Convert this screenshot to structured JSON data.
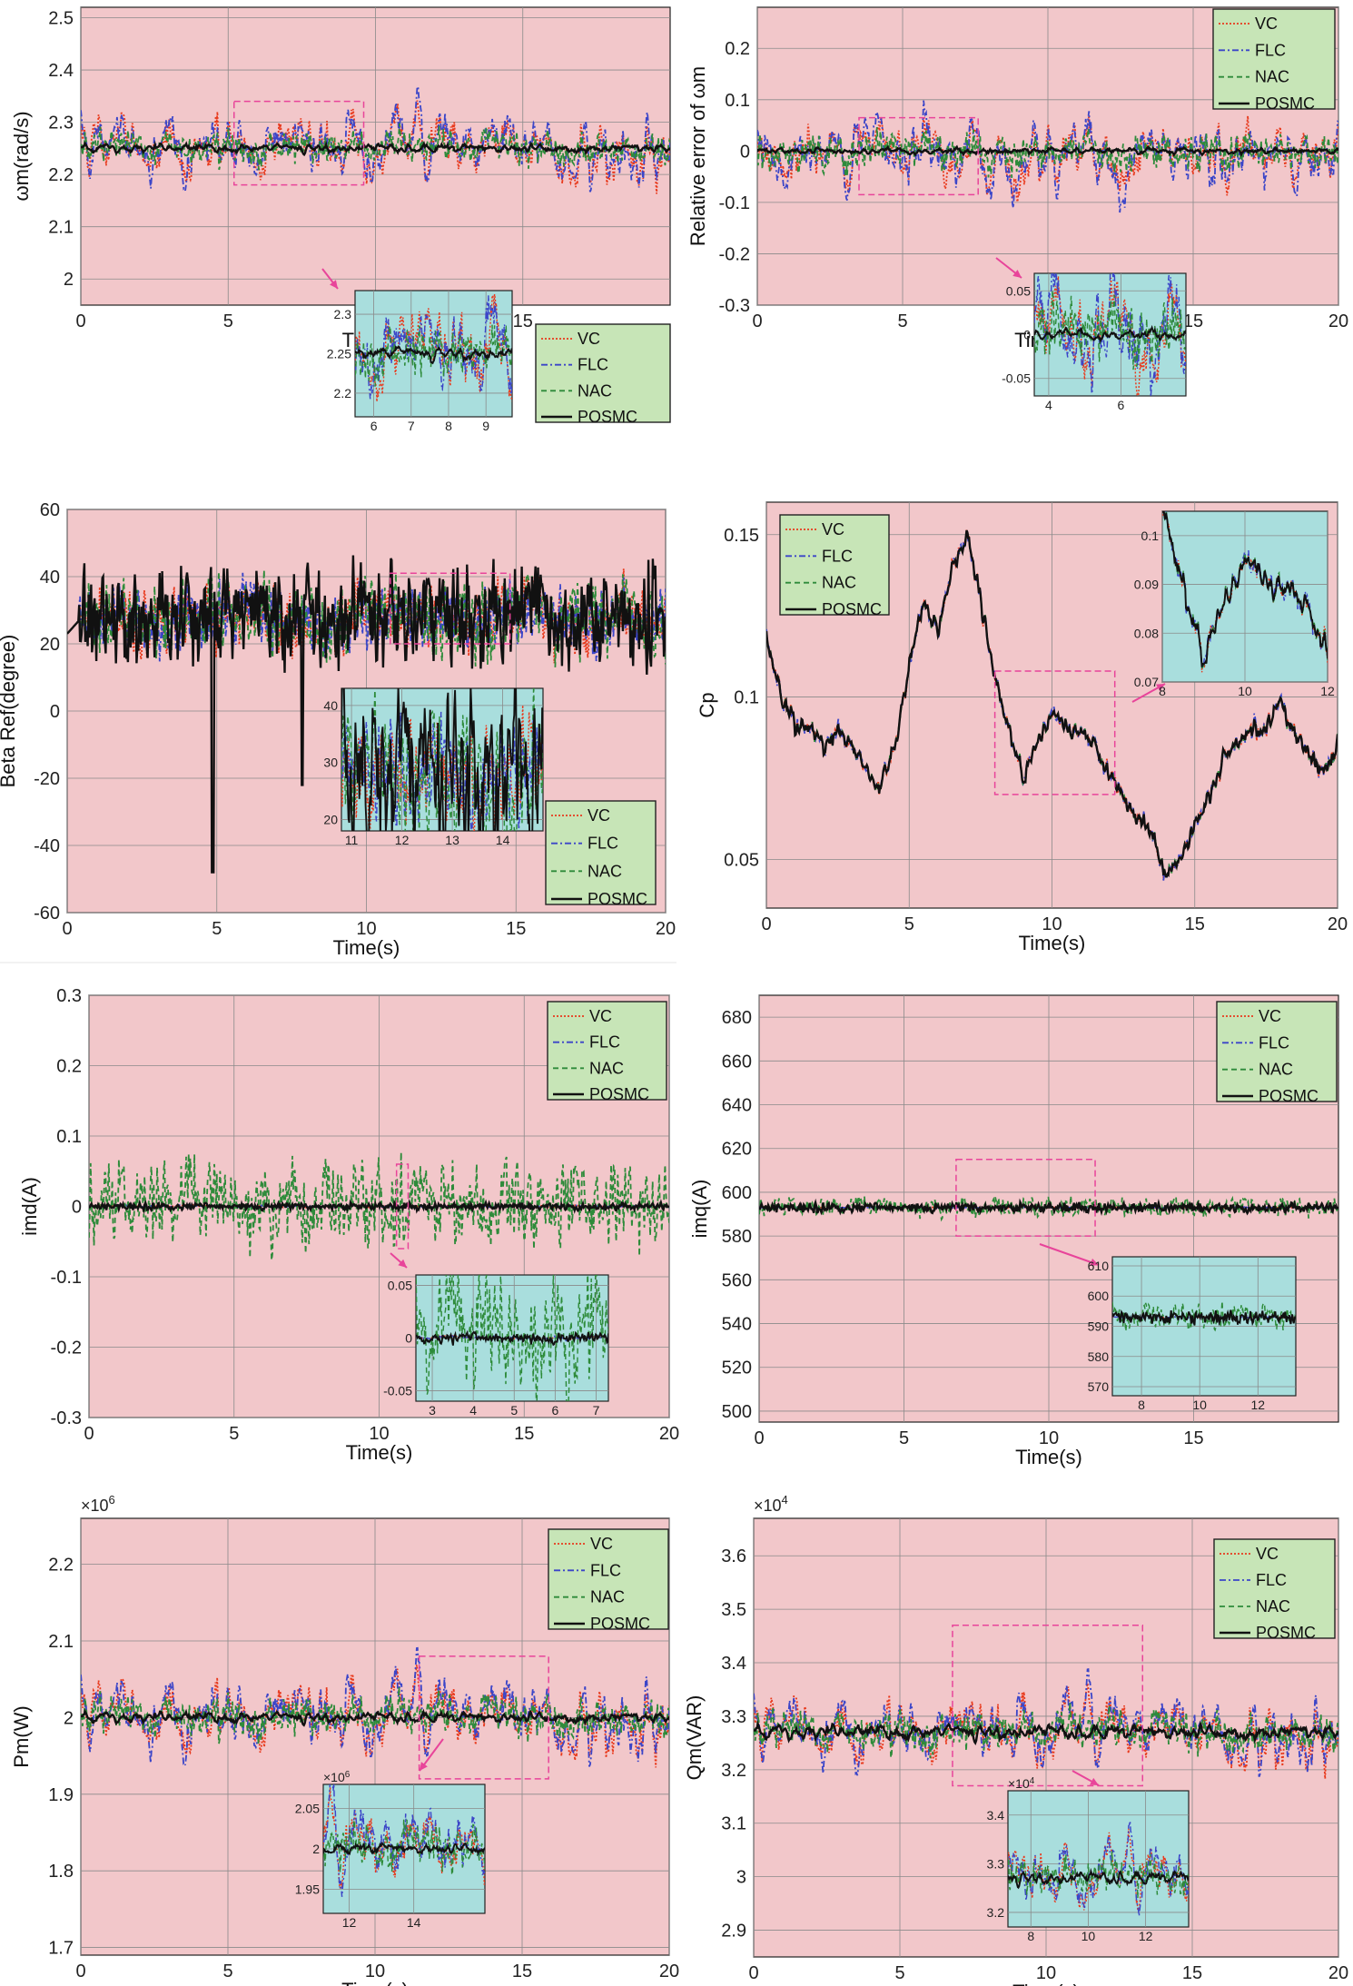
{
  "colors": {
    "VC": "#e8391c",
    "FLC": "#3b45c8",
    "NAC": "#2e8b3a",
    "POSMC": "#111111",
    "plot_bg": "#f2c7ca",
    "inset_bg": "#a9dedd",
    "legend_bg": "#c7e5b7",
    "zoom_box": "#e8449a"
  },
  "chart_data": [
    {
      "id": "wm",
      "type": "line",
      "title": "",
      "xlabel": "Time(s)",
      "ylabel": "ωm(rad/s)",
      "xlim": [
        0,
        20
      ],
      "ylim": [
        1.95,
        2.52
      ],
      "xticks": [
        0,
        5,
        10,
        15
      ],
      "xtick_labels": [
        "0",
        "5",
        "10",
        "15"
      ],
      "yticks": [
        2,
        2.1,
        2.2,
        2.3,
        2.4,
        2.5
      ],
      "ytick_labels": [
        "2",
        "2.1",
        "2.2",
        "2.3",
        "2.4",
        "2.5"
      ],
      "legend": [
        "VC",
        "FLC",
        "NAC",
        "POSMC"
      ],
      "legend_position": "lower-right",
      "series_params": {
        "base": 2.25,
        "VC": 0.12,
        "FLC": 0.13,
        "NAC": 0.06,
        "POSMC": 0.012
      },
      "zoom_box": {
        "x": [
          5.2,
          9.6
        ],
        "y": [
          2.18,
          2.34
        ]
      },
      "inset": {
        "xlim": [
          5.5,
          9.7
        ],
        "ylim": [
          2.17,
          2.33
        ],
        "xticks": [
          6,
          7,
          8,
          9
        ],
        "xtick_labels": [
          "6",
          "7",
          "8",
          "9"
        ],
        "yticks": [
          2.2,
          2.25,
          2.3
        ],
        "ytick_labels": [
          "2.2",
          "2.25",
          "2.3"
        ]
      }
    },
    {
      "id": "rel_err",
      "type": "line",
      "title": "",
      "xlabel": "Time(s)",
      "ylabel": "Relative error of ωm",
      "xlim": [
        0,
        20
      ],
      "ylim": [
        -0.3,
        0.28
      ],
      "xticks": [
        0,
        5,
        10,
        15,
        20
      ],
      "xtick_labels": [
        "0",
        "5",
        "10",
        "15",
        "20"
      ],
      "yticks": [
        -0.3,
        -0.2,
        -0.1,
        0,
        0.1,
        0.2
      ],
      "ytick_labels": [
        "-0.3",
        "-0.2",
        "-0.1",
        "0",
        "0.1",
        "0.2"
      ],
      "legend": [
        "VC",
        "FLC",
        "NAC",
        "POSMC"
      ],
      "legend_position": "top-right",
      "series_params": {
        "base": 0,
        "VC": 0.11,
        "FLC": 0.12,
        "NAC": 0.06,
        "POSMC": 0.008
      },
      "zoom_box": {
        "x": [
          3.5,
          7.6
        ],
        "y": [
          -0.085,
          0.065
        ]
      },
      "inset": {
        "xlim": [
          3.6,
          7.8
        ],
        "ylim": [
          -0.07,
          0.07
        ],
        "xticks": [
          4,
          6
        ],
        "xtick_labels": [
          "4",
          "6"
        ],
        "yticks": [
          -0.05,
          0,
          0.05
        ],
        "ytick_labels": [
          "-0.05",
          "0",
          "0.05"
        ]
      }
    },
    {
      "id": "beta",
      "type": "line",
      "title": "",
      "xlabel": "Time(s)",
      "ylabel": "Beta Ref(degree)",
      "xlim": [
        0,
        20
      ],
      "ylim": [
        -60,
        60
      ],
      "xticks": [
        0,
        5,
        10,
        15,
        20
      ],
      "xtick_labels": [
        "0",
        "5",
        "10",
        "15",
        "20"
      ],
      "yticks": [
        -60,
        -40,
        -20,
        0,
        20,
        40,
        60
      ],
      "ytick_labels": [
        "-60",
        "-40",
        "-20",
        "0",
        "20",
        "40",
        "60"
      ],
      "legend": [
        "VC",
        "FLC",
        "NAC",
        "POSMC"
      ],
      "legend_position": "lower-right",
      "series_params": {
        "base": 28,
        "VC": 5,
        "FLC": 5,
        "NAC": 6,
        "POSMC": 8
      },
      "zoom_box": {
        "x": [
          10.8,
          14.8
        ],
        "y": [
          20,
          41
        ]
      },
      "inset": {
        "xlim": [
          10.8,
          14.8
        ],
        "ylim": [
          18,
          43
        ],
        "xticks": [
          11,
          12,
          13,
          14
        ],
        "xtick_labels": [
          "11",
          "12",
          "13",
          "14"
        ],
        "yticks": [
          20,
          30,
          40
        ],
        "ytick_labels": [
          "20",
          "30",
          "40"
        ]
      }
    },
    {
      "id": "cp",
      "type": "line",
      "title": "",
      "xlabel": "Time(s)",
      "ylabel": "Cp",
      "xlim": [
        0,
        20
      ],
      "ylim": [
        0.035,
        0.16
      ],
      "xticks": [
        0,
        5,
        10,
        15,
        20
      ],
      "xtick_labels": [
        "0",
        "5",
        "10",
        "15",
        "20"
      ],
      "yticks": [
        0.05,
        0.1,
        0.15
      ],
      "ytick_labels": [
        "0.05",
        "0.1",
        "0.15"
      ],
      "legend": [
        "VC",
        "FLC",
        "NAC",
        "POSMC"
      ],
      "legend_position": "top-left",
      "series_params": {
        "base": 0.09,
        "VC": 0.0015,
        "FLC": 0.0018,
        "NAC": 0.0012,
        "POSMC": 0
      },
      "zoom_box": {
        "x": [
          8,
          12.2
        ],
        "y": [
          0.07,
          0.108
        ]
      },
      "inset": {
        "xlim": [
          8,
          12
        ],
        "ylim": [
          0.07,
          0.105
        ],
        "xticks": [
          8,
          10,
          12
        ],
        "xtick_labels": [
          "8",
          "10",
          "12"
        ],
        "yticks": [
          0.07,
          0.08,
          0.09,
          0.1
        ],
        "ytick_labels": [
          "0.07",
          "0.08",
          "0.09",
          "0.1"
        ]
      }
    },
    {
      "id": "imd",
      "type": "line",
      "title": "",
      "xlabel": "Time(s)",
      "ylabel": "imd(A)",
      "xlim": [
        0,
        20
      ],
      "ylim": [
        -0.3,
        0.3
      ],
      "xticks": [
        0,
        5,
        10,
        15,
        20
      ],
      "xtick_labels": [
        "0",
        "5",
        "10",
        "15",
        "20"
      ],
      "yticks": [
        -0.3,
        -0.2,
        -0.1,
        0,
        0.1,
        0.2,
        0.3
      ],
      "ytick_labels": [
        "-0.3",
        "-0.2",
        "-0.1",
        "0",
        "0.1",
        "0.2",
        "0.3"
      ],
      "legend": [
        "VC",
        "FLC",
        "NAC",
        "POSMC"
      ],
      "legend_position": "top-right",
      "series_params": {
        "base": 0,
        "VC": 0.003,
        "FLC": 0.003,
        "NAC": 0.1,
        "POSMC": 0.007
      },
      "zoom_box": {
        "x": [
          10.6,
          11.0
        ],
        "y": [
          -0.06,
          0.06
        ]
      },
      "inset": {
        "xlim": [
          2.6,
          7.3
        ],
        "ylim": [
          -0.06,
          0.06
        ],
        "xticks": [
          3,
          4,
          5,
          6,
          7
        ],
        "xtick_labels": [
          "3",
          "4",
          "5",
          "6",
          "7"
        ],
        "yticks": [
          -0.05,
          0,
          0.05
        ],
        "ytick_labels": [
          "-0.05",
          "0",
          "0.05"
        ]
      }
    },
    {
      "id": "imq",
      "type": "line",
      "title": "",
      "xlabel": "Time(s)",
      "ylabel": "imq(A)",
      "xlim": [
        0,
        20
      ],
      "ylim": [
        495,
        690
      ],
      "xticks": [
        0,
        5,
        10,
        15
      ],
      "xtick_labels": [
        "0",
        "5",
        "10",
        "15"
      ],
      "yticks": [
        500,
        520,
        540,
        560,
        580,
        600,
        620,
        640,
        660,
        680
      ],
      "ytick_labels": [
        "500",
        "520",
        "540",
        "560",
        "580",
        "600",
        "620",
        "640",
        "660",
        "680"
      ],
      "legend": [
        "VC",
        "FLC",
        "NAC",
        "POSMC"
      ],
      "legend_position": "top-right",
      "series_params": {
        "base": 593,
        "VC": 0.3,
        "FLC": 0.3,
        "NAC": 7,
        "POSMC": 3
      },
      "zoom_box": {
        "x": [
          6.8,
          11.6
        ],
        "y": [
          580,
          615
        ]
      },
      "inset": {
        "xlim": [
          7,
          13.3
        ],
        "ylim": [
          567,
          613
        ],
        "xticks": [
          8,
          10,
          12
        ],
        "xtick_labels": [
          "8",
          "10",
          "12"
        ],
        "yticks": [
          570,
          580,
          590,
          600,
          610
        ],
        "ytick_labels": [
          "570",
          "580",
          "590",
          "600",
          "610"
        ]
      }
    },
    {
      "id": "pm",
      "type": "line",
      "title": "",
      "xlabel": "Time(s)",
      "ylabel": "Pm(W)",
      "multiplier": "×10^6",
      "xlim": [
        0,
        20
      ],
      "ylim": [
        1.69,
        2.26
      ],
      "xticks": [
        0,
        5,
        10,
        15,
        20
      ],
      "xtick_labels": [
        "0",
        "5",
        "10",
        "15",
        "20"
      ],
      "yticks": [
        1.7,
        1.8,
        1.9,
        2,
        2.1,
        2.2
      ],
      "ytick_labels": [
        "1.7",
        "1.8",
        "1.9",
        "2",
        "2.1",
        "2.2"
      ],
      "legend": [
        "VC",
        "FLC",
        "NAC",
        "POSMC"
      ],
      "legend_position": "top-right",
      "series_params": {
        "base": 2.0,
        "VC": 0.09,
        "FLC": 0.1,
        "NAC": 0.05,
        "POSMC": 0.01
      },
      "zoom_box": {
        "x": [
          11.5,
          15.9
        ],
        "y": [
          1.92,
          2.08
        ]
      },
      "inset": {
        "xlim": [
          11.2,
          16.2
        ],
        "ylim": [
          1.92,
          2.08
        ],
        "xticks": [
          12,
          14
        ],
        "xtick_labels": [
          "12",
          "14"
        ],
        "yticks": [
          1.95,
          2,
          2.05
        ],
        "ytick_labels": [
          "1.95",
          "2",
          "2.05"
        ],
        "multiplier": "×10^6"
      }
    },
    {
      "id": "qm",
      "type": "line",
      "title": "",
      "xlabel": "Time(s)",
      "ylabel": "Qm(VAR)",
      "multiplier": "×10^4",
      "xlim": [
        0,
        20
      ],
      "ylim": [
        2.85,
        3.67
      ],
      "xticks": [
        0,
        5,
        10,
        15,
        20
      ],
      "xtick_labels": [
        "0",
        "5",
        "10",
        "15",
        "20"
      ],
      "yticks": [
        2.9,
        3,
        3.1,
        3.2,
        3.3,
        3.4,
        3.5,
        3.6
      ],
      "ytick_labels": [
        "2.9",
        "3",
        "3.1",
        "3.2",
        "3.3",
        "3.4",
        "3.5",
        "3.6"
      ],
      "legend": [
        "VC",
        "FLC",
        "NAC",
        "POSMC"
      ],
      "legend_position": "top-right",
      "series_params": {
        "base": 3.27,
        "VC": 0.12,
        "FLC": 0.13,
        "NAC": 0.07,
        "POSMC": 0.02
      },
      "zoom_box": {
        "x": [
          6.8,
          13.3
        ],
        "y": [
          3.17,
          3.47
        ]
      },
      "inset": {
        "xlim": [
          7.2,
          13.5
        ],
        "ylim": [
          3.17,
          3.45
        ],
        "xticks": [
          8,
          10,
          12
        ],
        "xtick_labels": [
          "8",
          "10",
          "12"
        ],
        "yticks": [
          3.2,
          3.3,
          3.4
        ],
        "ytick_labels": [
          "3.2",
          "3.3",
          "3.4"
        ],
        "multiplier": "×10^4"
      }
    }
  ]
}
